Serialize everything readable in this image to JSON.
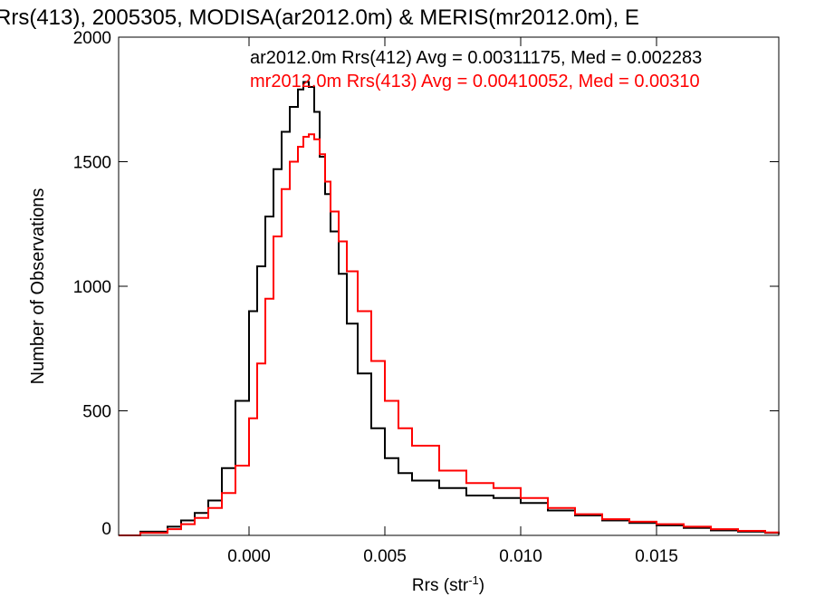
{
  "chart_data": {
    "type": "line",
    "title": "Rrs(413), 2005305, MODISA(ar2012.0m) & MERIS(mr2012.0m), E",
    "xlabel": "Rrs (str",
    "xlabel_sup": "-1",
    "xlabel_close": ")",
    "ylabel": "Number of Observations",
    "xlim": [
      -0.0048,
      0.0195
    ],
    "ylim": [
      0,
      2000
    ],
    "x_ticks": [
      0.0,
      0.005,
      0.01,
      0.015
    ],
    "x_tick_labels": [
      "0.000",
      "0.005",
      "0.010",
      "0.015"
    ],
    "y_ticks": [
      0,
      500,
      1000,
      1500,
      2000
    ],
    "y_tick_labels": [
      "0",
      "500",
      "1000",
      "1500",
      "2000"
    ],
    "grid": false,
    "legend": {
      "placement": "top-right",
      "entries": [
        {
          "text": "ar2012.0m Rrs(412) Avg = 0.00311175, Med = 0.002283",
          "color": "#000000"
        },
        {
          "text": "mr2012.0m Rrs(413) Avg = 0.00410052, Med = 0.00310",
          "color": "#ff0000"
        }
      ]
    },
    "series": [
      {
        "color": "#000000",
        "step": true,
        "x": [
          -0.0048,
          -0.004,
          -0.003,
          -0.0025,
          -0.002,
          -0.0015,
          -0.001,
          -0.0005,
          0.0,
          0.0003,
          0.0006,
          0.0009,
          0.0012,
          0.0015,
          0.0018,
          0.002,
          0.0022,
          0.0024,
          0.0026,
          0.0028,
          0.003,
          0.0033,
          0.0036,
          0.004,
          0.0045,
          0.005,
          0.0055,
          0.006,
          0.007,
          0.008,
          0.009,
          0.01,
          0.011,
          0.012,
          0.013,
          0.014,
          0.015,
          0.016,
          0.017,
          0.018,
          0.019,
          0.0195
        ],
        "y": [
          0,
          15,
          35,
          60,
          90,
          140,
          270,
          540,
          900,
          1080,
          1280,
          1470,
          1620,
          1720,
          1790,
          1820,
          1800,
          1700,
          1520,
          1370,
          1220,
          1050,
          850,
          650,
          430,
          310,
          250,
          220,
          190,
          160,
          150,
          130,
          100,
          80,
          60,
          50,
          40,
          30,
          20,
          15,
          10,
          5
        ]
      },
      {
        "color": "#ff0000",
        "step": true,
        "x": [
          -0.0048,
          -0.004,
          -0.003,
          -0.0025,
          -0.002,
          -0.0015,
          -0.001,
          -0.0005,
          0.0,
          0.0003,
          0.0006,
          0.0009,
          0.0012,
          0.0015,
          0.0018,
          0.002,
          0.0022,
          0.0024,
          0.0026,
          0.0028,
          0.003,
          0.0033,
          0.0036,
          0.004,
          0.0045,
          0.005,
          0.0055,
          0.006,
          0.007,
          0.008,
          0.009,
          0.01,
          0.011,
          0.012,
          0.013,
          0.014,
          0.015,
          0.016,
          0.017,
          0.018,
          0.019,
          0.0195
        ],
        "y": [
          0,
          10,
          25,
          45,
          70,
          110,
          170,
          280,
          470,
          690,
          950,
          1200,
          1390,
          1500,
          1560,
          1600,
          1610,
          1590,
          1530,
          1420,
          1300,
          1180,
          1060,
          900,
          700,
          540,
          430,
          360,
          260,
          210,
          190,
          150,
          110,
          85,
          65,
          55,
          45,
          35,
          25,
          18,
          12,
          8
        ]
      }
    ]
  }
}
